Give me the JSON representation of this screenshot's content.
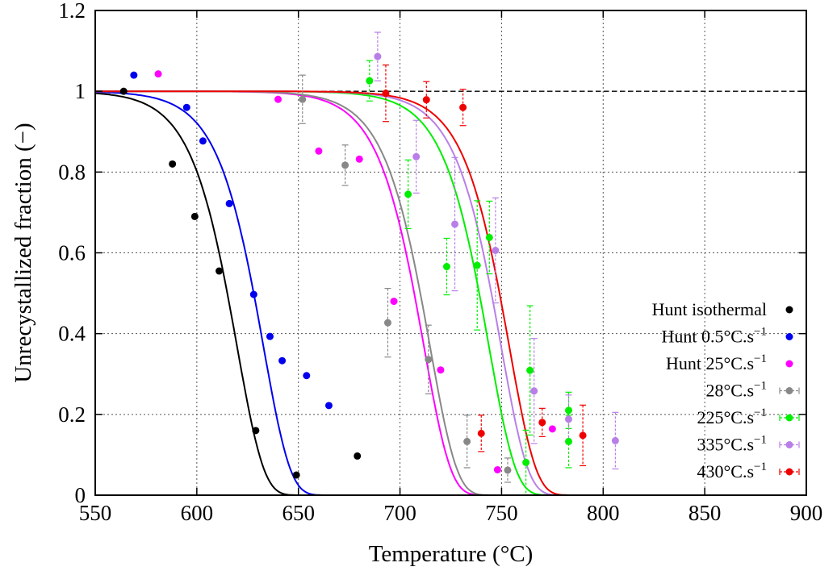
{
  "chart_data": {
    "type": "scatter",
    "xlabel": "Temperature (°C)",
    "ylabel": "Unrecystallized fraction (−)",
    "xlim": [
      550,
      900
    ],
    "ylim": [
      0,
      1.2
    ],
    "xticks": [
      550,
      600,
      650,
      700,
      750,
      800,
      850,
      900
    ],
    "yticks": [
      0,
      0.2,
      0.4,
      0.6,
      0.8,
      1,
      1.2
    ],
    "xtick_labels": [
      "550",
      "600",
      "650",
      "700",
      "750",
      "800",
      "850",
      "900"
    ],
    "ytick_labels": [
      "0",
      "0.2",
      "0.4",
      "0.6",
      "0.8",
      "1",
      "1.2"
    ],
    "grid": true,
    "reference_line": {
      "y": 1,
      "style": "dashed"
    },
    "legend_position": "bottom-right",
    "series": [
      {
        "name": "Hunt isothermal",
        "color": "#000000",
        "points": [
          [
            564,
            1.0
          ],
          [
            588,
            0.82
          ],
          [
            599,
            0.69
          ],
          [
            611,
            0.555
          ],
          [
            629,
            0.16
          ],
          [
            649,
            0.05
          ],
          [
            679,
            0.097
          ]
        ],
        "fit_curve": {
          "t50": 615,
          "width": 21
        }
      },
      {
        "name": "Hunt 0.5°C.s",
        "superscript": "−1",
        "color": "#0000ee",
        "points": [
          [
            569,
            1.04
          ],
          [
            595,
            0.96
          ],
          [
            603,
            0.877
          ],
          [
            616,
            0.722
          ],
          [
            628,
            0.497
          ],
          [
            636,
            0.393
          ],
          [
            642,
            0.333
          ],
          [
            654,
            0.296
          ],
          [
            665,
            0.222
          ]
        ],
        "fit_curve": {
          "t50": 628,
          "width": 21
        }
      },
      {
        "name": "Hunt 25°C.s",
        "superscript": "−1",
        "color": "#ff00ff",
        "points": [
          [
            581,
            1.043
          ],
          [
            640,
            0.98
          ],
          [
            660,
            0.852
          ],
          [
            680,
            0.832
          ],
          [
            697,
            0.48
          ],
          [
            720,
            0.31
          ],
          [
            748,
            0.063
          ],
          [
            775,
            0.164
          ]
        ],
        "fit_curve": {
          "t50": 707,
          "width": 21
        }
      },
      {
        "name": "28°C.s",
        "superscript": "−1",
        "color": "#888888",
        "points": [
          [
            652,
            0.98
          ],
          [
            673,
            0.817
          ],
          [
            694,
            0.427
          ],
          [
            714,
            0.336
          ],
          [
            733,
            0.133
          ],
          [
            753,
            0.062
          ]
        ],
        "errors": [
          0.06,
          0.05,
          0.085,
          0.085,
          0.065,
          0.03
        ],
        "fit_curve": {
          "t50": 710,
          "width": 21
        }
      },
      {
        "name": "225°C.s",
        "superscript": "−1",
        "color": "#00ee00",
        "points": [
          [
            685,
            1.026
          ],
          [
            704,
            0.745
          ],
          [
            723,
            0.566
          ],
          [
            738,
            0.569
          ],
          [
            744,
            0.638
          ],
          [
            762,
            0.081
          ],
          [
            764,
            0.309
          ],
          [
            783,
            0.21
          ],
          [
            783,
            0.133
          ]
        ],
        "errors": [
          0.05,
          0.085,
          0.07,
          0.16,
          0.09,
          0.08,
          0.16,
          0.045,
          0.065
        ],
        "fit_curve": {
          "t50": 739,
          "width": 21
        }
      },
      {
        "name": "335°C.s",
        "superscript": "−1",
        "color": "#b97fe8",
        "points": [
          [
            689,
            1.086
          ],
          [
            708,
            0.838
          ],
          [
            727,
            0.671
          ],
          [
            747,
            0.606
          ],
          [
            766,
            0.258
          ],
          [
            783,
            0.188
          ],
          [
            806,
            0.135
          ]
        ],
        "errors": [
          0.06,
          0.09,
          0.165,
          0.13,
          0.13,
          0.06,
          0.07
        ],
        "fit_curve": {
          "t50": 745,
          "width": 21
        }
      },
      {
        "name": "430°C.s",
        "superscript": "−1",
        "color": "#ee0000",
        "points": [
          [
            693,
            0.995
          ],
          [
            713,
            0.979
          ],
          [
            731,
            0.96
          ],
          [
            740,
            0.153
          ],
          [
            770,
            0.18
          ],
          [
            790,
            0.148
          ]
        ],
        "errors": [
          0.07,
          0.045,
          0.045,
          0.045,
          0.035,
          0.075
        ],
        "fit_curve": {
          "t50": 749,
          "width": 21
        }
      }
    ]
  }
}
